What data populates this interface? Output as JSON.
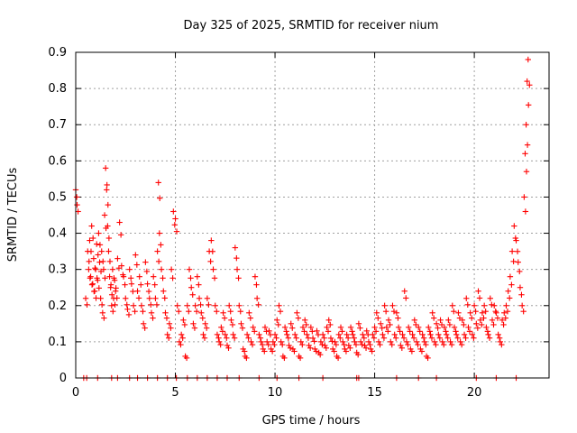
{
  "chart_data": {
    "type": "scatter",
    "title": "Day 325 of 2025, SRMTID for receiver nium",
    "xlabel": "GPS time / hours",
    "ylabel": "SRMTID / TECUs",
    "xlim": [
      0,
      23.75
    ],
    "ylim": [
      0,
      0.9
    ],
    "xticks": [
      0,
      5,
      10,
      15,
      20
    ],
    "xtick_labels": [
      "0",
      "5",
      "10",
      "15",
      "20"
    ],
    "yticks": [
      0,
      0.1,
      0.2,
      0.3,
      0.4,
      0.5,
      0.6,
      0.7,
      0.8,
      0.9
    ],
    "ytick_labels": [
      "0",
      "0.1",
      "0.2",
      "0.3",
      "0.4",
      "0.5",
      "0.6",
      "0.7",
      "0.8",
      "0.9"
    ],
    "grid": true,
    "marker": "+",
    "color": "#ff0000",
    "series": [
      {
        "name": "SRMTID",
        "x": [
          0.0,
          0.05,
          0.5,
          0.6,
          0.65,
          0.7,
          0.75,
          0.8,
          0.85,
          0.9,
          0.95,
          1.0,
          1.05,
          1.1,
          1.15,
          1.2,
          1.25,
          1.3,
          1.35,
          1.4,
          1.45,
          1.5,
          1.55,
          1.6,
          1.65,
          1.7,
          1.75,
          1.8,
          1.85,
          1.9,
          1.95,
          2.0,
          2.1,
          2.2,
          2.3,
          2.4,
          2.5,
          2.6,
          2.7,
          2.8,
          2.9,
          3.0,
          3.1,
          3.2,
          3.3,
          3.4,
          3.5,
          3.6,
          3.7,
          3.8,
          3.9,
          4.0,
          4.1,
          4.15,
          4.2,
          4.3,
          4.4,
          4.5,
          4.6,
          4.7,
          4.8,
          4.9,
          5.0,
          5.1,
          5.2,
          5.3,
          5.4,
          5.5,
          5.6,
          5.7,
          5.8,
          5.9,
          6.0,
          6.1,
          6.2,
          6.3,
          6.4,
          6.5,
          6.6,
          6.7,
          6.8,
          6.9,
          7.0,
          7.1,
          7.2,
          7.3,
          7.4,
          7.5,
          7.6,
          7.7,
          7.8,
          7.9,
          8.0,
          8.1,
          8.2,
          8.3,
          8.4,
          8.5,
          8.6,
          8.7,
          8.8,
          8.9,
          9.0,
          9.1,
          9.2,
          9.3,
          9.4,
          9.5,
          9.6,
          9.7,
          9.8,
          9.9,
          10.0,
          10.1,
          10.2,
          10.3,
          10.4,
          10.5,
          10.6,
          10.7,
          10.8,
          10.9,
          11.0,
          11.1,
          11.2,
          11.3,
          11.4,
          11.5,
          11.6,
          11.7,
          11.8,
          11.9,
          12.0,
          12.1,
          12.2,
          12.3,
          12.4,
          12.5,
          12.6,
          12.7,
          12.8,
          12.9,
          13.0,
          13.1,
          13.2,
          13.3,
          13.4,
          13.5,
          13.6,
          13.7,
          13.8,
          13.9,
          14.0,
          14.1,
          14.2,
          14.3,
          14.4,
          14.5,
          14.6,
          14.7,
          14.8,
          14.9,
          15.0,
          15.1,
          15.2,
          15.3,
          15.4,
          15.5,
          15.6,
          15.7,
          15.8,
          15.9,
          16.0,
          16.1,
          16.2,
          16.3,
          16.4,
          16.5,
          16.6,
          16.7,
          16.8,
          16.9,
          17.0,
          17.1,
          17.2,
          17.3,
          17.4,
          17.5,
          17.6,
          17.7,
          17.8,
          17.9,
          18.0,
          18.1,
          18.2,
          18.3,
          18.4,
          18.5,
          18.6,
          18.7,
          18.8,
          18.9,
          19.0,
          19.1,
          19.2,
          19.3,
          19.4,
          19.5,
          19.6,
          19.7,
          19.8,
          19.9,
          20.0,
          20.1,
          20.2,
          20.3,
          20.4,
          20.5,
          20.6,
          20.7,
          20.8,
          20.9,
          21.0,
          21.1,
          21.2,
          21.3,
          21.4,
          21.5,
          21.6,
          21.7,
          21.8,
          21.9,
          22.0,
          22.1,
          22.2,
          22.3,
          22.4,
          22.5,
          22.55,
          22.6,
          22.65,
          22.7
        ],
        "y": [
          0.52,
          0.5,
          0.22,
          0.35,
          0.3,
          0.38,
          0.28,
          0.42,
          0.26,
          0.33,
          0.24,
          0.3,
          0.37,
          0.27,
          0.4,
          0.32,
          0.22,
          0.35,
          0.18,
          0.3,
          0.45,
          0.58,
          0.52,
          0.42,
          0.35,
          0.28,
          0.25,
          0.2,
          0.3,
          0.22,
          0.27,
          0.24,
          0.33,
          0.43,
          0.31,
          0.28,
          0.22,
          0.19,
          0.3,
          0.26,
          0.2,
          0.34,
          0.24,
          0.28,
          0.2,
          0.15,
          0.32,
          0.26,
          0.22,
          0.18,
          0.28,
          0.22,
          0.35,
          0.54,
          0.4,
          0.3,
          0.24,
          0.18,
          0.12,
          0.15,
          0.3,
          0.46,
          0.44,
          0.2,
          0.1,
          0.12,
          0.16,
          0.06,
          0.2,
          0.3,
          0.25,
          0.15,
          0.2,
          0.28,
          0.22,
          0.18,
          0.12,
          0.15,
          0.22,
          0.35,
          0.38,
          0.3,
          0.2,
          0.12,
          0.1,
          0.14,
          0.18,
          0.12,
          0.09,
          0.2,
          0.16,
          0.12,
          0.36,
          0.3,
          0.2,
          0.15,
          0.08,
          0.06,
          0.12,
          0.18,
          0.1,
          0.14,
          0.28,
          0.22,
          0.12,
          0.1,
          0.08,
          0.14,
          0.1,
          0.13,
          0.08,
          0.1,
          0.12,
          0.16,
          0.2,
          0.1,
          0.06,
          0.14,
          0.12,
          0.09,
          0.15,
          0.08,
          0.12,
          0.18,
          0.06,
          0.1,
          0.14,
          0.16,
          0.12,
          0.09,
          0.14,
          0.11,
          0.08,
          0.13,
          0.07,
          0.1,
          0.12,
          0.09,
          0.14,
          0.16,
          0.11,
          0.08,
          0.1,
          0.06,
          0.12,
          0.14,
          0.1,
          0.08,
          0.12,
          0.09,
          0.14,
          0.12,
          0.1,
          0.07,
          0.15,
          0.1,
          0.12,
          0.09,
          0.13,
          0.1,
          0.08,
          0.12,
          0.14,
          0.18,
          0.1,
          0.15,
          0.12,
          0.2,
          0.14,
          0.16,
          0.1,
          0.2,
          0.12,
          0.18,
          0.14,
          0.09,
          0.12,
          0.24,
          0.1,
          0.14,
          0.08,
          0.12,
          0.16,
          0.1,
          0.14,
          0.08,
          0.12,
          0.1,
          0.06,
          0.14,
          0.12,
          0.18,
          0.1,
          0.15,
          0.12,
          0.16,
          0.1,
          0.14,
          0.12,
          0.16,
          0.1,
          0.2,
          0.14,
          0.12,
          0.18,
          0.1,
          0.16,
          0.12,
          0.22,
          0.14,
          0.18,
          0.12,
          0.2,
          0.15,
          0.24,
          0.16,
          0.18,
          0.2,
          0.14,
          0.12,
          0.22,
          0.16,
          0.2,
          0.18,
          0.12,
          0.1,
          0.16,
          0.18,
          0.2,
          0.24,
          0.28,
          0.35,
          0.42,
          0.38,
          0.32,
          0.25,
          0.2,
          0.5,
          0.62,
          0.7,
          0.82,
          0.88
        ],
        "zero_x": [
          0.4,
          0.55,
          1.1,
          1.8,
          2.1,
          2.7,
          3.1,
          3.6,
          4.1,
          4.6,
          5.05,
          5.6,
          6.1,
          6.6,
          7.1,
          7.6,
          8.2,
          9.2,
          10.1,
          11.2,
          12.4,
          14.1,
          14.2,
          16.1,
          17.2,
          18.1,
          20.1,
          21.1,
          22.1
        ]
      }
    ]
  }
}
